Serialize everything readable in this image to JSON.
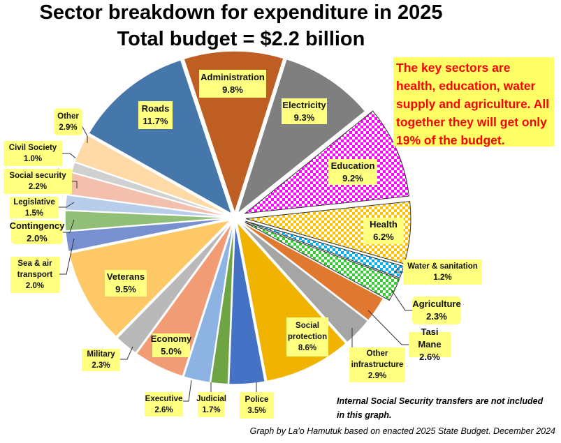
{
  "chart_data": {
    "type": "pie",
    "title": "Sector breakdown for expenditure in 2025",
    "subtitle": "Total budget = $2.2 billion",
    "unit": "%",
    "slices": [
      {
        "name": "Administration",
        "value": 9.8,
        "label": "9.8%",
        "color": "#BE5E22"
      },
      {
        "name": "Electricity",
        "value": 9.3,
        "label": "9.3%",
        "color": "#7F7F7F"
      },
      {
        "name": "Education",
        "value": 9.2,
        "label": "9.2%",
        "color": "#FF00FF",
        "pattern": true
      },
      {
        "name": "Health",
        "value": 6.2,
        "label": "6.2%",
        "color": "#FFC000",
        "pattern": true
      },
      {
        "name": "Water & sanitation",
        "value": 1.2,
        "label": "1.2%",
        "color": "#00B0F0",
        "pattern": true
      },
      {
        "name": "Agriculture",
        "value": 2.3,
        "label": "2.3%",
        "color": "#33CC33",
        "pattern": true
      },
      {
        "name": "Tasi Mane",
        "value": 2.6,
        "label": "2.6%",
        "color": "#E07830"
      },
      {
        "name": "Other infrastructure",
        "value": 2.9,
        "label": "2.9%",
        "color": "#A5A5A5"
      },
      {
        "name": "Social protection",
        "value": 8.6,
        "label": "8.6%",
        "color": "#F0B400"
      },
      {
        "name": "Police",
        "value": 3.5,
        "label": "3.5%",
        "color": "#4472C4"
      },
      {
        "name": "Judicial",
        "value": 1.7,
        "label": "1.7%",
        "color": "#6FA444"
      },
      {
        "name": "Executive",
        "value": 2.6,
        "label": "2.6%",
        "color": "#8DB3E2"
      },
      {
        "name": "Economy",
        "value": 5.0,
        "label": "5.0%",
        "color": "#F19C74"
      },
      {
        "name": "Military",
        "value": 2.3,
        "label": "2.3%",
        "color": "#B9B9B9"
      },
      {
        "name": "Veterans",
        "value": 9.5,
        "label": "9.5%",
        "color": "#FFC866"
      },
      {
        "name": "Sea & air transport",
        "value": 2.0,
        "label": "2.0%",
        "color": "#7990D0"
      },
      {
        "name": "Contingency",
        "value": 2.0,
        "label": "2.0%",
        "color": "#92BF78"
      },
      {
        "name": "Legislative",
        "value": 1.5,
        "label": "1.5%",
        "color": "#B7CDEA"
      },
      {
        "name": "Social security",
        "value": 2.2,
        "label": "2.2%",
        "color": "#F4C0AE"
      },
      {
        "name": "Civil Society",
        "value": 1.0,
        "label": "1.0%",
        "color": "#D0D0D0"
      },
      {
        "name": "Other",
        "value": 2.9,
        "label": "2.9%",
        "color": "#FFDAA6"
      },
      {
        "name": "Roads",
        "value": 11.7,
        "label": "11.7%",
        "color": "#4677AA"
      }
    ],
    "legend": "none"
  },
  "note": "The key sectors are health, education, water supply and agriculture. All together they will get only 19% of the budget.",
  "footnote": "Internal Social Security transfers are not included in this graph.",
  "credit": "Graph by La'o Hamutuk based on enacted 2025 State Budget. December 2024"
}
